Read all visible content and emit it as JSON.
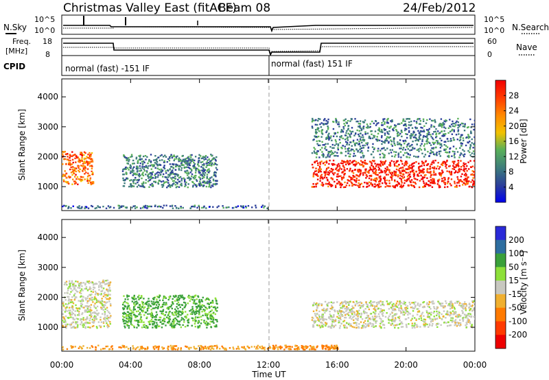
{
  "header": {
    "station": "Christmas Valley East (fitACF)",
    "beam": "Beam 08",
    "date": "24/Feb/2012"
  },
  "top_panels": {
    "nsky_label": "N.Sky",
    "nsky_ticks": [
      "10^5",
      "10^0"
    ],
    "nsearch_label": "N.Search",
    "nsearch_ticks": [
      "10^5",
      "10^0"
    ],
    "freq_label": "Freq.",
    "freq_unit": "[MHz]",
    "freq_ticks": [
      "18",
      "8"
    ],
    "nave_label": "Nave",
    "nave_ticks": [
      "60",
      "0"
    ],
    "cpid_label": "CPID",
    "cpid_segments": [
      "normal (fast) -151 IF",
      "normal (fast) 151 IF"
    ]
  },
  "chart_data": [
    {
      "type": "heatmap",
      "name": "Power",
      "ylabel": "Slant Range [km]",
      "y_ticks": [
        1000,
        2000,
        3000,
        4000
      ],
      "ylim": [
        200,
        4600
      ],
      "x_ticks": [
        "00:00",
        "04:00",
        "08:00",
        "12:00",
        "16:00",
        "20:00",
        "00:00"
      ],
      "xlim_hours": [
        0,
        24
      ],
      "colorbar_label": "Power [dB]",
      "colorbar_ticks": [
        4,
        8,
        12,
        16,
        20,
        24,
        28
      ],
      "colorbar_colors": [
        "#0000ee",
        "#2c3f9a",
        "#3d7c7c",
        "#59b059",
        "#f2c200",
        "#ff8a00",
        "#ff3a00",
        "#f20000"
      ],
      "features": [
        {
          "t": [
            0.0,
            1.8
          ],
          "range_km": [
            1100,
            2200
          ],
          "power_db": 22
        },
        {
          "t": [
            3.5,
            9.0
          ],
          "range_km": [
            1000,
            2100
          ],
          "power_db": 8
        },
        {
          "t": [
            0.0,
            12.0
          ],
          "range_km": [
            300,
            400
          ],
          "power_db": 6
        },
        {
          "t": [
            14.5,
            24.0
          ],
          "range_km": [
            1000,
            1900
          ],
          "power_db": 26
        },
        {
          "t": [
            14.5,
            24.0
          ],
          "range_km": [
            2000,
            3300
          ],
          "power_db": 8
        }
      ]
    },
    {
      "type": "heatmap",
      "name": "Velocity",
      "ylabel": "Slant Range [km]",
      "y_ticks": [
        1000,
        2000,
        3000,
        4000
      ],
      "ylim": [
        200,
        4600
      ],
      "x_ticks": [
        "00:00",
        "04:00",
        "08:00",
        "12:00",
        "16:00",
        "20:00",
        "00:00"
      ],
      "xlabel": "Time UT",
      "xlim_hours": [
        0,
        24
      ],
      "colorbar_label": "Velocity [m s⁻¹]",
      "colorbar_ticks": [
        200,
        100,
        50,
        15,
        -15,
        -50,
        -100,
        -200
      ],
      "colorbar_colors": [
        "#2a2ad8",
        "#2e6ea0",
        "#3aa03a",
        "#8ee03a",
        "#c8c8c0",
        "#f0b030",
        "#ff7a00",
        "#ff3a00",
        "#ee0000"
      ],
      "features": [
        {
          "t": [
            0.0,
            2.8
          ],
          "range_km": [
            1000,
            2600
          ],
          "velocity": 0
        },
        {
          "t": [
            3.5,
            9.0
          ],
          "range_km": [
            1000,
            2100
          ],
          "velocity": 60
        },
        {
          "t": [
            0.0,
            12.0
          ],
          "range_km": [
            280,
            420
          ],
          "velocity": -40
        },
        {
          "t": [
            14.5,
            24.0
          ],
          "range_km": [
            1000,
            1900
          ],
          "velocity": 0
        },
        {
          "t": [
            12.0,
            16.0
          ],
          "range_km": [
            280,
            420
          ],
          "velocity": -60
        }
      ]
    }
  ]
}
